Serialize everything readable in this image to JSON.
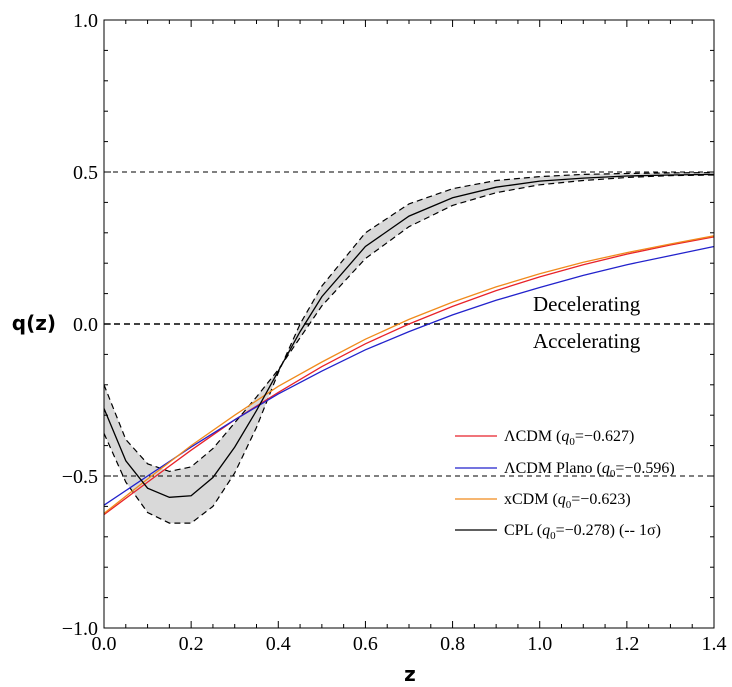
{
  "chart_data": {
    "type": "line",
    "xlabel": "z",
    "ylabel": "q(z)",
    "xlim": [
      0,
      1.4
    ],
    "ylim": [
      -1,
      1
    ],
    "x_ticks": [
      "0.0",
      "0.2",
      "0.4",
      "0.6",
      "0.8",
      "1.0",
      "1.2",
      "1.4"
    ],
    "y_ticks": [
      "1.0",
      "0.5",
      "0.0",
      "−0.5",
      "−1.0"
    ],
    "x_tick_values": [
      0,
      0.2,
      0.4,
      0.6,
      0.8,
      1.0,
      1.2,
      1.4
    ],
    "y_tick_values": [
      1,
      0.5,
      0,
      -0.5,
      -1
    ],
    "reference_lines": [
      0.5,
      0.0,
      -0.5
    ],
    "annotations": {
      "above_zero": "Decelerating",
      "below_zero": "Accelerating"
    },
    "legend_position": "lower-right",
    "series": [
      {
        "name": "ΛCDM (q0=−0.627)",
        "legend": {
          "model": "ΛCDM",
          "pre": "(",
          "q": "q",
          "sub": "0",
          "post": "=−0.627)"
        },
        "color": "#e8222a",
        "x": [
          0,
          0.1,
          0.2,
          0.3,
          0.4,
          0.5,
          0.6,
          0.7,
          0.8,
          0.9,
          1.0,
          1.1,
          1.2,
          1.3,
          1.4
        ],
        "y": [
          -0.627,
          -0.52,
          -0.415,
          -0.315,
          -0.225,
          -0.14,
          -0.065,
          0.0,
          0.058,
          0.11,
          0.155,
          0.195,
          0.23,
          0.26,
          0.287
        ]
      },
      {
        "name": "ΛCDM Plano (q0=−0.596)",
        "legend": {
          "model": "ΛCDM  Plano",
          "pre": "(",
          "q": "q",
          "sub": "0",
          "post": "=−0.596)"
        },
        "color": "#2222cc",
        "x": [
          0,
          0.1,
          0.2,
          0.3,
          0.4,
          0.5,
          0.6,
          0.7,
          0.8,
          0.9,
          1.0,
          1.1,
          1.2,
          1.3,
          1.4
        ],
        "y": [
          -0.596,
          -0.5,
          -0.405,
          -0.315,
          -0.23,
          -0.155,
          -0.085,
          -0.025,
          0.03,
          0.078,
          0.12,
          0.16,
          0.195,
          0.225,
          0.255
        ]
      },
      {
        "name": "xCDM (q0=−0.623)",
        "legend": {
          "model": "xCDM",
          "pre": "(",
          "q": "q",
          "sub": "0",
          "post": "=−0.623)"
        },
        "color": "#f08a1c",
        "x": [
          0,
          0.1,
          0.2,
          0.3,
          0.4,
          0.5,
          0.6,
          0.7,
          0.8,
          0.9,
          1.0,
          1.1,
          1.2,
          1.3,
          1.4
        ],
        "y": [
          -0.623,
          -0.51,
          -0.4,
          -0.3,
          -0.205,
          -0.125,
          -0.05,
          0.015,
          0.072,
          0.122,
          0.165,
          0.203,
          0.235,
          0.263,
          0.29
        ]
      },
      {
        "name": "CPL (q0=−0.278) (-- 1σ)",
        "legend": {
          "model": "CPL",
          "pre": "(",
          "q": "q",
          "sub": "0",
          "post": "=−0.278)",
          "extra": "(-- 1σ)"
        },
        "color": "#000000",
        "x": [
          0,
          0.05,
          0.1,
          0.15,
          0.2,
          0.25,
          0.3,
          0.35,
          0.4,
          0.45,
          0.5,
          0.6,
          0.7,
          0.8,
          0.9,
          1.0,
          1.1,
          1.2,
          1.3,
          1.4
        ],
        "y": [
          -0.278,
          -0.45,
          -0.54,
          -0.57,
          -0.565,
          -0.505,
          -0.405,
          -0.285,
          -0.155,
          -0.025,
          0.09,
          0.255,
          0.355,
          0.415,
          0.45,
          0.47,
          0.48,
          0.487,
          0.49,
          0.492
        ],
        "band_upper": [
          -0.2,
          -0.38,
          -0.46,
          -0.485,
          -0.47,
          -0.41,
          -0.325,
          -0.24,
          -0.15,
          -0.045,
          0.06,
          0.215,
          0.32,
          0.39,
          0.432,
          0.458,
          0.472,
          0.482,
          0.488,
          0.49
        ],
        "band_lower": [
          -0.36,
          -0.52,
          -0.62,
          -0.655,
          -0.655,
          -0.6,
          -0.49,
          -0.34,
          -0.16,
          0.0,
          0.125,
          0.3,
          0.395,
          0.445,
          0.472,
          0.485,
          0.492,
          0.495,
          0.497,
          0.498
        ],
        "band_color": "#d9d9d9"
      }
    ]
  }
}
